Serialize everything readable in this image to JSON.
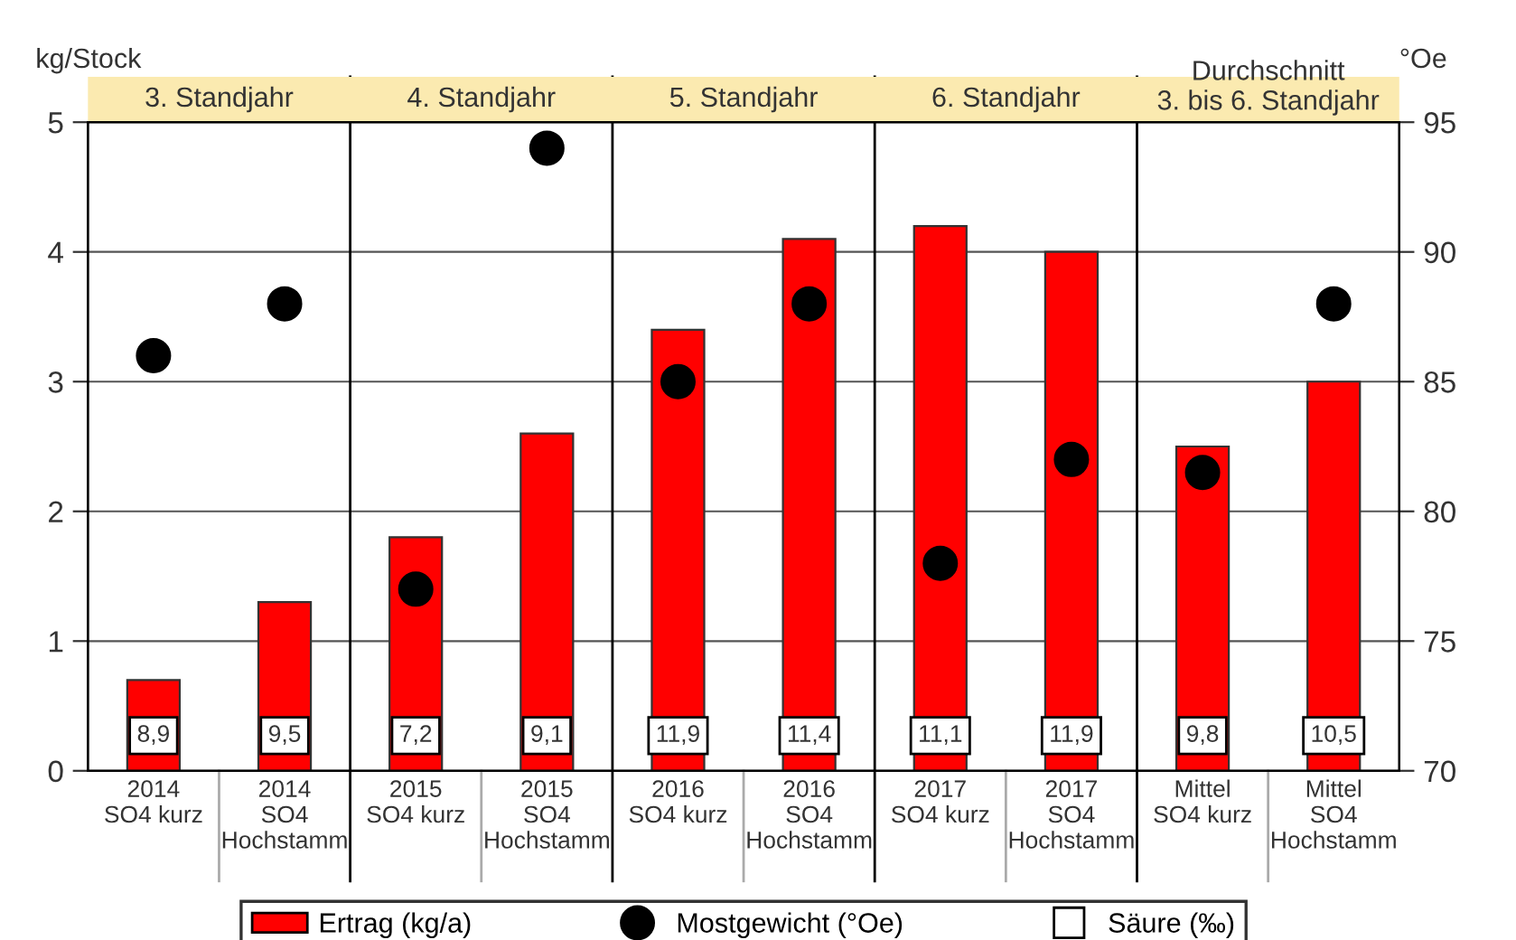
{
  "chart_data": [
    {
      "type": "bar",
      "ylabel": "kg/Stock",
      "y2label": "°Oe",
      "categories": [
        "2014\nSO4 kurz",
        "2014\nSO4\nHochstamm",
        "2015\nSO4 kurz",
        "2015\nSO4\nHochstamm",
        "2016\nSO4 kurz",
        "2016\nSO4\nHochstamm",
        "2017\nSO4 kurz",
        "2017\nSO4\nHochstamm",
        "Mittel\nSO4 kurz",
        "Mittel\nSO4\nHochstamm"
      ],
      "series": [
        {
          "name": "Ertrag (kg/a)",
          "color": "#ff0000",
          "values": [
            0.7,
            1.3,
            1.8,
            2.6,
            3.4,
            4.1,
            4.2,
            4.0,
            2.5,
            3.0
          ]
        },
        {
          "name": "Mostgewicht (°Oe)",
          "type": "scatter",
          "marker": "circle",
          "axis": "y2",
          "color": "#000000",
          "values": [
            86,
            88,
            77,
            94,
            85,
            88,
            78,
            82,
            81.5,
            88
          ]
        }
      ],
      "annotations": [
        "3. Standjahr",
        "4. Standjahr",
        "5. Standjahr",
        "6. Standjahr",
        "Durchschnitt\n3. bis 6. Standjahr"
      ],
      "ylim": [
        0,
        5
      ],
      "yticks": [
        0,
        1,
        2,
        3,
        4,
        5
      ],
      "y2lim": [
        70,
        95
      ],
      "y2ticks": [
        70,
        75,
        80,
        85,
        90,
        95
      ],
      "grid": "y",
      "legend": "bottom"
    },
    {
      "type": "other",
      "series": [
        {
          "name": "Säure (‰)",
          "marker": "square",
          "color": "#ffffff",
          "values": [
            8.9,
            9.5,
            7.2,
            9.1,
            11.9,
            11.4,
            11.1,
            11.9,
            9.8,
            10.5
          ],
          "value_labels": [
            "8,9",
            "9,5",
            "7,2",
            "9,1",
            "11,9",
            "11,4",
            "11,1",
            "11,9",
            "9,8",
            "10,5"
          ]
        }
      ]
    }
  ]
}
